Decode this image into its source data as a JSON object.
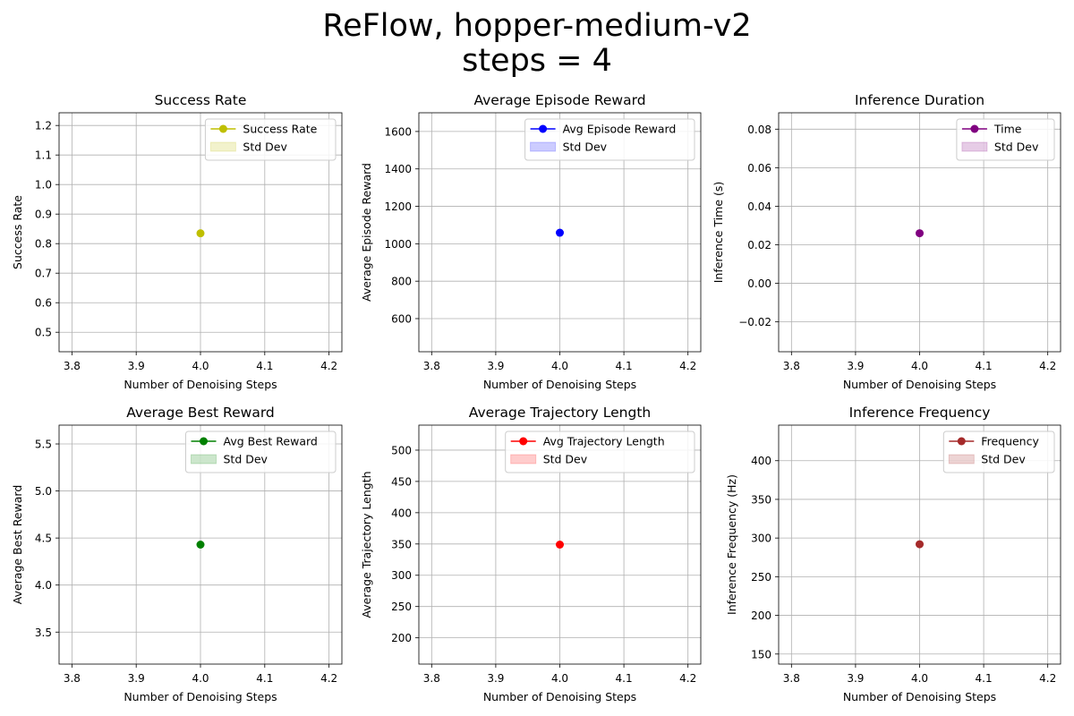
{
  "figure": {
    "title_line1": "ReFlow, hopper-medium-v2",
    "title_line2": "steps = 4"
  },
  "chart_data": [
    {
      "type": "line",
      "title": "Success Rate",
      "xlabel": "Number of Denoising Steps",
      "ylabel": "Success Rate",
      "xlim": [
        3.78,
        4.22
      ],
      "ylim": [
        0.434,
        1.243
      ],
      "xticks": [
        3.8,
        3.9,
        4.0,
        4.1,
        4.2
      ],
      "xtick_labels": [
        "3.8",
        "3.9",
        "4.0",
        "4.1",
        "4.2"
      ],
      "yticks": [
        0.5,
        0.6,
        0.7,
        0.8,
        0.9,
        1.0,
        1.1,
        1.2
      ],
      "ytick_labels": [
        "0.5",
        "0.6",
        "0.7",
        "0.8",
        "0.9",
        "1.0",
        "1.1",
        "1.2"
      ],
      "grid": true,
      "legend_loc": "upper right",
      "series": [
        {
          "name": "Success Rate",
          "x": [
            4.0
          ],
          "values": [
            0.835
          ],
          "color": "#bfbf00"
        }
      ],
      "std_label": "Std Dev",
      "std_color": "#bfbf00"
    },
    {
      "type": "line",
      "title": "Average Episode Reward",
      "xlabel": "Number of Denoising Steps",
      "ylabel": "Average Episode Reward",
      "xlim": [
        3.78,
        4.22
      ],
      "ylim": [
        423,
        1700
      ],
      "xticks": [
        3.8,
        3.9,
        4.0,
        4.1,
        4.2
      ],
      "xtick_labels": [
        "3.8",
        "3.9",
        "4.0",
        "4.1",
        "4.2"
      ],
      "yticks": [
        600,
        800,
        1000,
        1200,
        1400,
        1600
      ],
      "ytick_labels": [
        "600",
        "800",
        "1000",
        "1200",
        "1400",
        "1600"
      ],
      "grid": true,
      "legend_loc": "upper right",
      "series": [
        {
          "name": "Avg Episode Reward",
          "x": [
            4.0
          ],
          "values": [
            1059
          ],
          "color": "#0000ff"
        }
      ],
      "std_label": "Std Dev",
      "std_color": "#0000ff"
    },
    {
      "type": "line",
      "title": "Inference Duration",
      "xlabel": "Number of Denoising Steps",
      "ylabel": "Inference Time (s)",
      "xlim": [
        3.78,
        4.22
      ],
      "ylim": [
        -0.0355,
        0.0885
      ],
      "xticks": [
        3.8,
        3.9,
        4.0,
        4.1,
        4.2
      ],
      "xtick_labels": [
        "3.8",
        "3.9",
        "4.0",
        "4.1",
        "4.2"
      ],
      "yticks": [
        -0.02,
        0.0,
        0.02,
        0.04,
        0.06,
        0.08
      ],
      "ytick_labels": [
        "−0.02",
        "0.00",
        "0.02",
        "0.04",
        "0.06",
        "0.08"
      ],
      "grid": true,
      "legend_loc": "upper right",
      "series": [
        {
          "name": "Time",
          "x": [
            4.0
          ],
          "values": [
            0.026
          ],
          "color": "#800080"
        }
      ],
      "std_label": "Std Dev",
      "std_color": "#800080"
    },
    {
      "type": "line",
      "title": "Average Best Reward",
      "xlabel": "Number of Denoising Steps",
      "ylabel": "Average Best Reward",
      "xlim": [
        3.78,
        4.22
      ],
      "ylim": [
        3.16,
        5.7
      ],
      "xticks": [
        3.8,
        3.9,
        4.0,
        4.1,
        4.2
      ],
      "xtick_labels": [
        "3.8",
        "3.9",
        "4.0",
        "4.1",
        "4.2"
      ],
      "yticks": [
        3.5,
        4.0,
        4.5,
        5.0,
        5.5
      ],
      "ytick_labels": [
        "3.5",
        "4.0",
        "4.5",
        "5.0",
        "5.5"
      ],
      "grid": true,
      "legend_loc": "upper right",
      "series": [
        {
          "name": "Avg Best Reward",
          "x": [
            4.0
          ],
          "values": [
            4.43
          ],
          "color": "#008000"
        }
      ],
      "std_label": "Std Dev",
      "std_color": "#008000"
    },
    {
      "type": "line",
      "title": "Average Trajectory Length",
      "xlabel": "Number of Denoising Steps",
      "ylabel": "Average Trajectory Length",
      "xlim": [
        3.78,
        4.22
      ],
      "ylim": [
        158,
        540
      ],
      "xticks": [
        3.8,
        3.9,
        4.0,
        4.1,
        4.2
      ],
      "xtick_labels": [
        "3.8",
        "3.9",
        "4.0",
        "4.1",
        "4.2"
      ],
      "yticks": [
        200,
        250,
        300,
        350,
        400,
        450,
        500
      ],
      "ytick_labels": [
        "200",
        "250",
        "300",
        "350",
        "400",
        "450",
        "500"
      ],
      "grid": true,
      "legend_loc": "upper right",
      "series": [
        {
          "name": "Avg Trajectory Length",
          "x": [
            4.0
          ],
          "values": [
            349
          ],
          "color": "#ff0000"
        }
      ],
      "std_label": "Std Dev",
      "std_color": "#ff0000"
    },
    {
      "type": "line",
      "title": "Inference Frequency",
      "xlabel": "Number of Denoising Steps",
      "ylabel": "Inference Frequency (Hz)",
      "xlim": [
        3.78,
        4.22
      ],
      "ylim": [
        137,
        446
      ],
      "xticks": [
        3.8,
        3.9,
        4.0,
        4.1,
        4.2
      ],
      "xtick_labels": [
        "3.8",
        "3.9",
        "4.0",
        "4.1",
        "4.2"
      ],
      "yticks": [
        150,
        200,
        250,
        300,
        350,
        400
      ],
      "ytick_labels": [
        "150",
        "200",
        "250",
        "300",
        "350",
        "400"
      ],
      "grid": true,
      "legend_loc": "upper right",
      "series": [
        {
          "name": "Frequency",
          "x": [
            4.0
          ],
          "values": [
            292
          ],
          "color": "#a52a2a"
        }
      ],
      "std_label": "Std Dev",
      "std_color": "#a52a2a"
    }
  ]
}
